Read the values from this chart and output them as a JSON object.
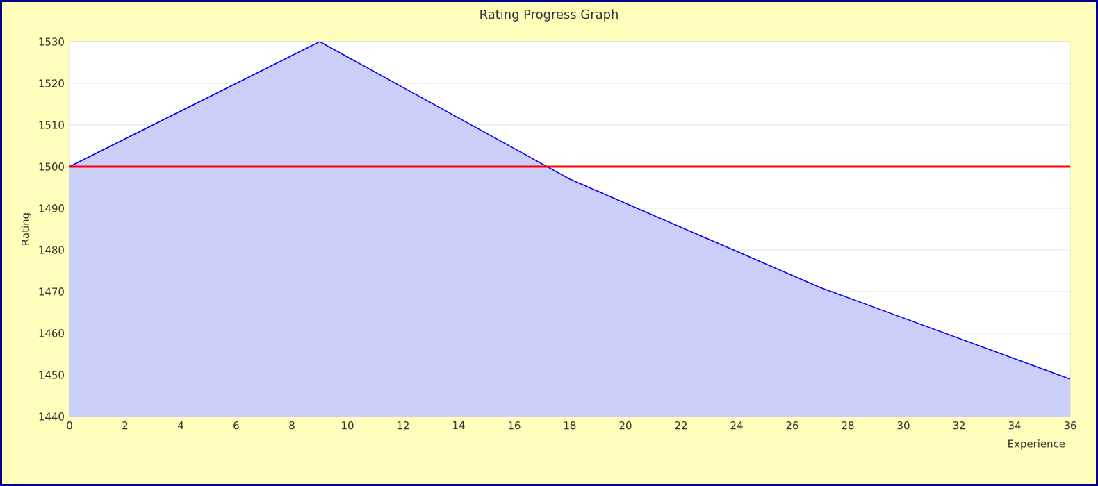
{
  "chart_data": {
    "type": "area",
    "title": "Rating Progress Graph",
    "xlabel": "Experience",
    "ylabel": "Rating",
    "x": [
      0,
      9,
      18,
      27,
      36
    ],
    "series": [
      {
        "color": "#0000ff",
        "values": [
          1500,
          1530,
          1497,
          1471,
          1449
        ]
      }
    ],
    "xlim": [
      0,
      36
    ],
    "ylim": [
      1440,
      1530
    ],
    "xticks": [
      0,
      2,
      4,
      6,
      8,
      10,
      12,
      14,
      16,
      18,
      20,
      22,
      24,
      26,
      28,
      30,
      32,
      34,
      36
    ],
    "yticks": [
      1440,
      1450,
      1460,
      1470,
      1480,
      1490,
      1500,
      1510,
      1520,
      1530
    ],
    "grid": "y",
    "marker": "none",
    "line_style": "solid",
    "ref_lines": [
      {
        "axis": "y",
        "value": 1500,
        "color": "#ff0000"
      }
    ]
  }
}
